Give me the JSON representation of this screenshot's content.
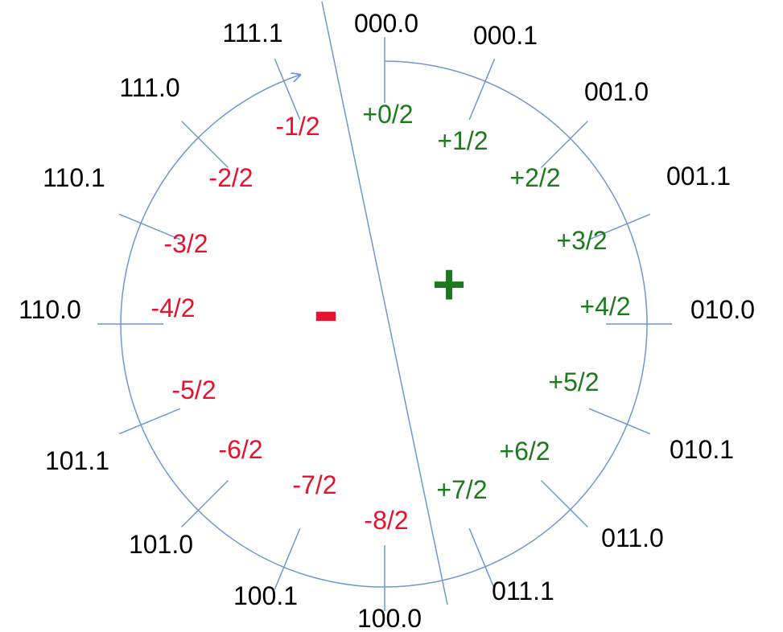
{
  "colors": {
    "line": "#6f97d4",
    "binary_text": "#000000",
    "negative": "#e8112d",
    "positive": "#1c7a1c"
  },
  "signs": {
    "negative": "-",
    "positive": "+"
  },
  "positions": [
    {
      "binary": "000.0",
      "value": "+0/2",
      "group": "positive"
    },
    {
      "binary": "000.1",
      "value": "+1/2",
      "group": "positive"
    },
    {
      "binary": "001.0",
      "value": "+2/2",
      "group": "positive"
    },
    {
      "binary": "001.1",
      "value": "+3/2",
      "group": "positive"
    },
    {
      "binary": "010.0",
      "value": "+4/2",
      "group": "positive"
    },
    {
      "binary": "010.1",
      "value": "+5/2",
      "group": "positive"
    },
    {
      "binary": "011.0",
      "value": "+6/2",
      "group": "positive"
    },
    {
      "binary": "011.1",
      "value": "+7/2",
      "group": "positive"
    },
    {
      "binary": "100.0",
      "value": "-8/2",
      "group": "negative"
    },
    {
      "binary": "100.1",
      "value": "-7/2",
      "group": "negative"
    },
    {
      "binary": "101.0",
      "value": "-6/2",
      "group": "negative"
    },
    {
      "binary": "101.1",
      "value": "-5/2",
      "group": "negative"
    },
    {
      "binary": "110.0",
      "value": "-4/2",
      "group": "negative"
    },
    {
      "binary": "110.1",
      "value": "-3/2",
      "group": "negative"
    },
    {
      "binary": "111.0",
      "value": "-2/2",
      "group": "negative"
    },
    {
      "binary": "111.1",
      "value": "-1/2",
      "group": "negative"
    }
  ]
}
